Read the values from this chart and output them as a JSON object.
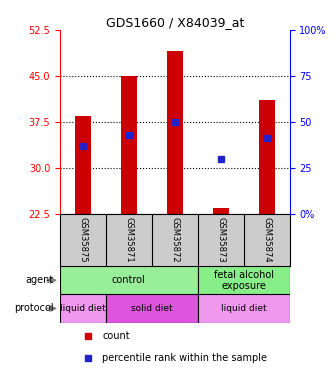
{
  "title": "GDS1660 / X84039_at",
  "samples": [
    "GSM35875",
    "GSM35871",
    "GSM35872",
    "GSM35873",
    "GSM35874"
  ],
  "bar_tops": [
    38.5,
    45.0,
    49.0,
    23.5,
    41.0
  ],
  "bar_bottom": 22.5,
  "percentile_ranks": [
    37.0,
    43.0,
    50.0,
    30.0,
    41.0
  ],
  "ylim_left": [
    22.5,
    52.5
  ],
  "ylim_right": [
    0,
    100
  ],
  "yticks_left": [
    22.5,
    30.0,
    37.5,
    45.0,
    52.5
  ],
  "yticks_right": [
    0,
    25,
    50,
    75,
    100
  ],
  "ytick_labels_right": [
    "0%",
    "25",
    "50",
    "75",
    "100%"
  ],
  "bar_color": "#cc0000",
  "square_color": "#2222cc",
  "agent_labels": [
    {
      "label": "control",
      "span": [
        0,
        3
      ],
      "color": "#99ee99"
    },
    {
      "label": "fetal alcohol\nexposure",
      "span": [
        3,
        5
      ],
      "color": "#88ee88"
    }
  ],
  "protocol_labels": [
    {
      "label": "liquid diet",
      "span": [
        0,
        1
      ],
      "color": "#ee99ee"
    },
    {
      "label": "solid diet",
      "span": [
        1,
        3
      ],
      "color": "#dd55dd"
    },
    {
      "label": "liquid diet",
      "span": [
        3,
        5
      ],
      "color": "#ee99ee"
    }
  ],
  "agent_row_label": "agent",
  "protocol_row_label": "protocol",
  "legend_count_color": "#cc0000",
  "legend_pct_color": "#2222cc",
  "bar_width": 0.35
}
